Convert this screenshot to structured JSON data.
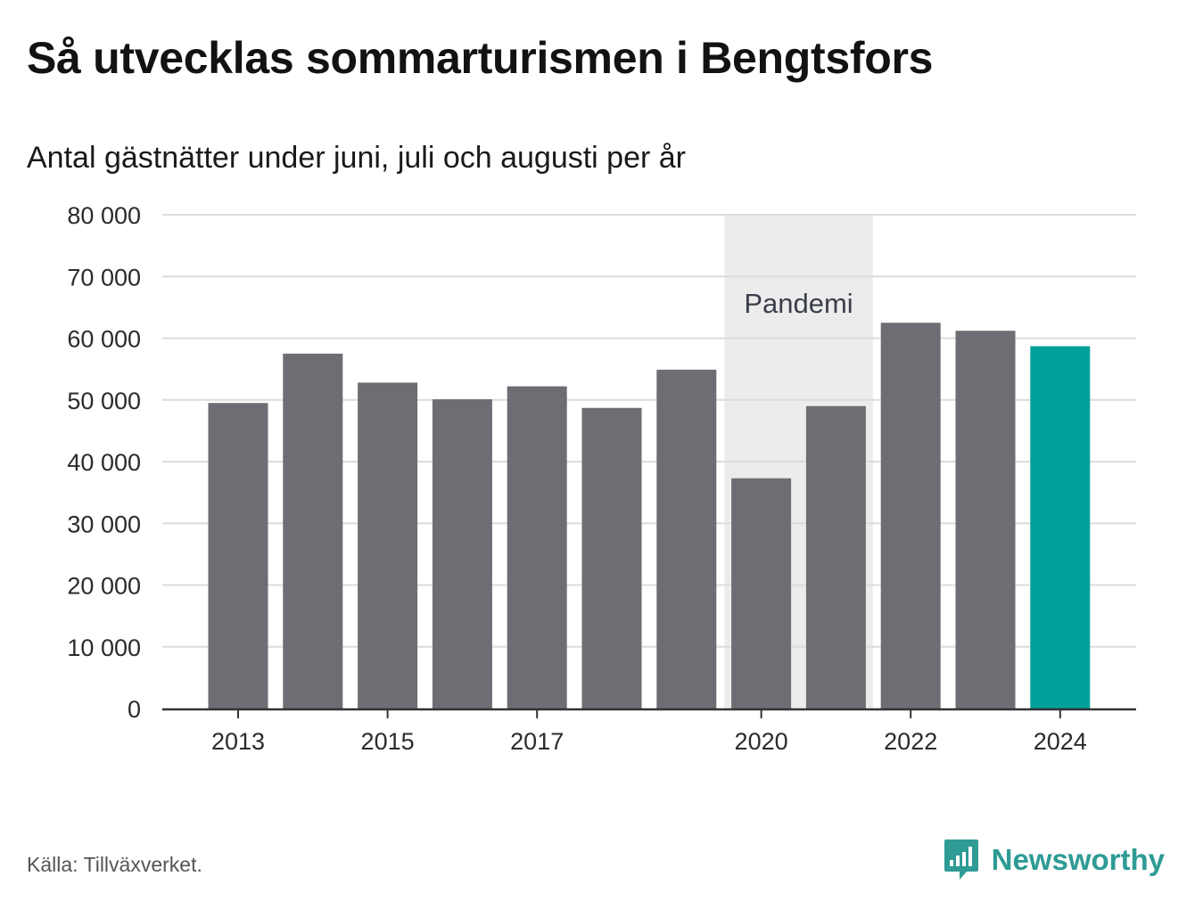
{
  "header": {
    "title": "Så utvecklas sommarturismen i Bengtsfors",
    "subtitle": "Antal gästnätter under juni, juli och augusti per år"
  },
  "footer": {
    "source": "Källa: Tillväxverket.",
    "brand": "Newsworthy"
  },
  "colors": {
    "bar": "#6e6d73",
    "highlight": "#00a19a",
    "band": "#ececec",
    "grid": "#dcdcdc",
    "axis": "#333333",
    "brand": "#2e9b94"
  },
  "chart_data": {
    "type": "bar",
    "title": "Så utvecklas sommarturismen i Bengtsfors",
    "subtitle": "Antal gästnätter under juni, juli och augusti per år",
    "categories": [
      "2013",
      "2014",
      "2015",
      "2016",
      "2017",
      "2018",
      "2019",
      "2020",
      "2021",
      "2022",
      "2023",
      "2024"
    ],
    "values": [
      49500,
      57500,
      52800,
      50100,
      52200,
      48700,
      54900,
      37300,
      49000,
      62500,
      61200,
      58700
    ],
    "highlight_index": 11,
    "xticks": [
      "2013",
      "2015",
      "2017",
      "2020",
      "2022",
      "2024"
    ],
    "ylim": [
      0,
      80000
    ],
    "yticks": [
      0,
      10000,
      20000,
      30000,
      40000,
      50000,
      60000,
      70000,
      80000
    ],
    "ytick_labels": [
      "0",
      "10 000",
      "20 000",
      "30 000",
      "40 000",
      "50 000",
      "60 000",
      "70 000",
      "80 000"
    ],
    "annotation": {
      "label": "Pandemi",
      "from": "2020",
      "to": "2021"
    },
    "grid": true,
    "legend": "none"
  }
}
